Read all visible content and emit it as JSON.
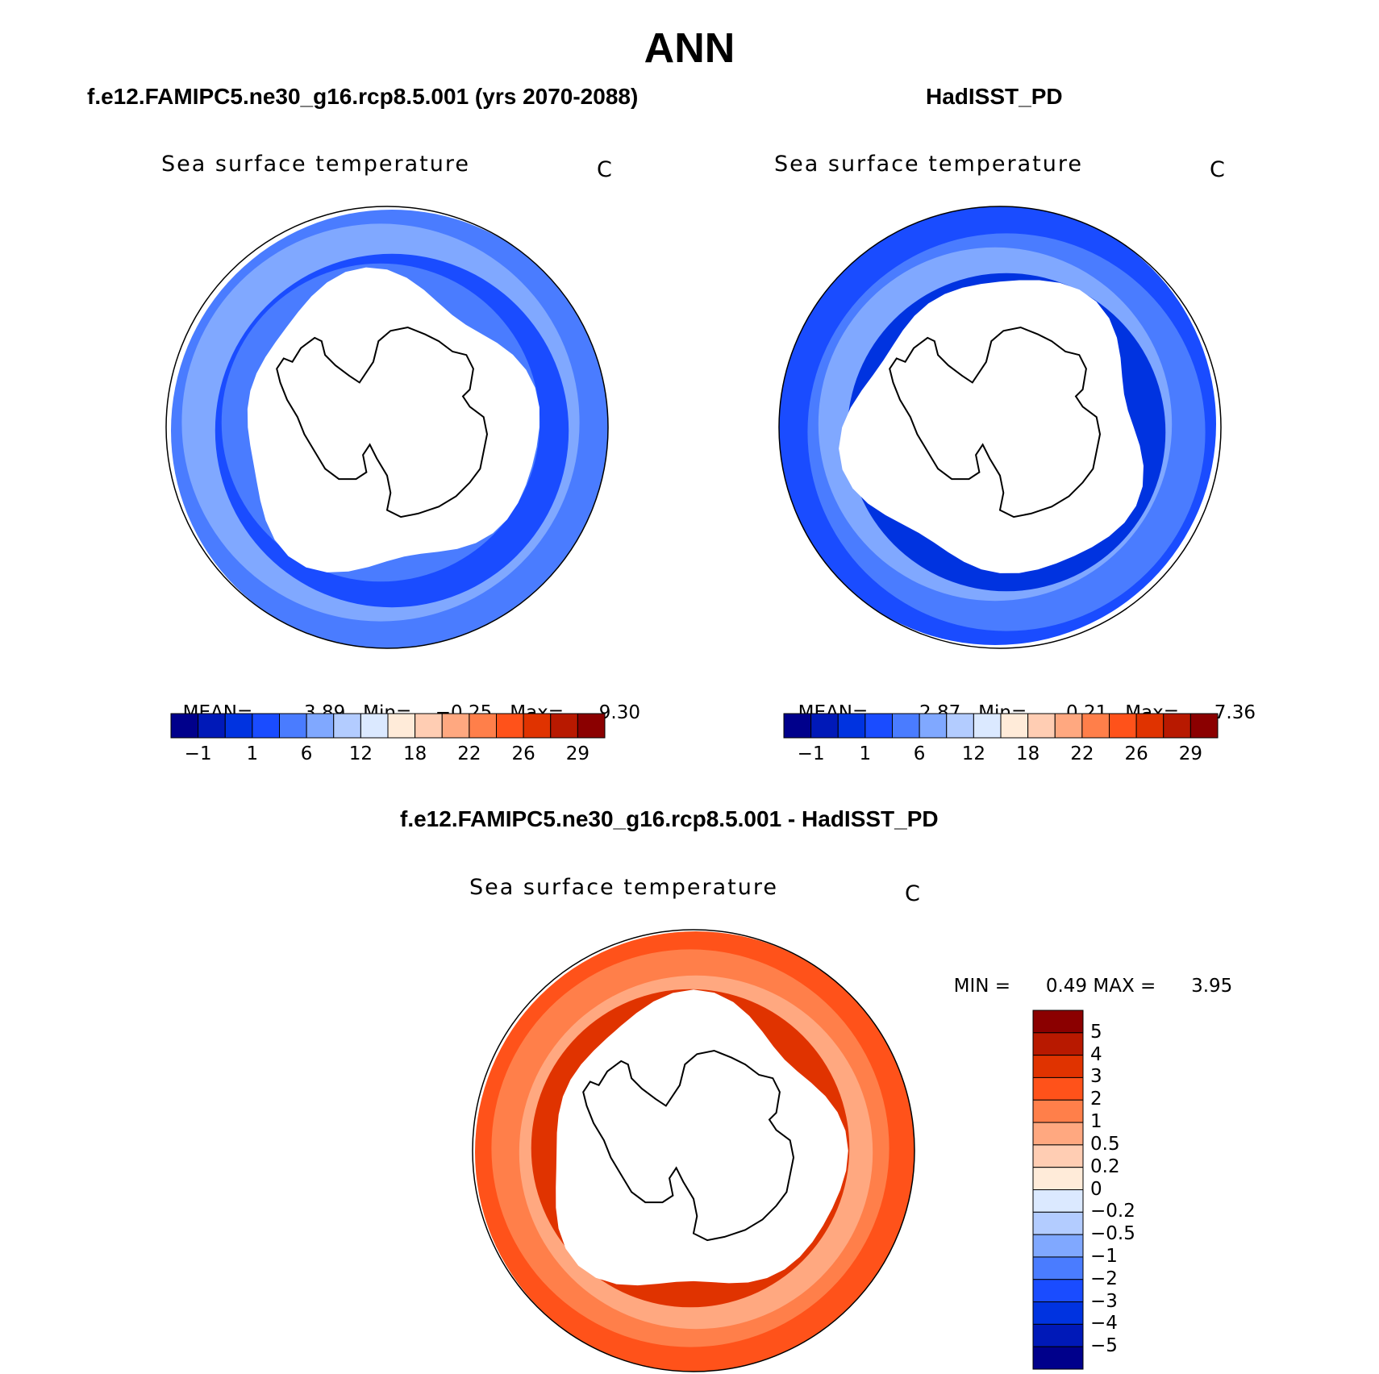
{
  "figure": {
    "title": "ANN",
    "colors": {
      "land_fill": "#ffffff",
      "outline": "#000000"
    }
  },
  "panels": [
    {
      "case_title": "f.e12.FAMIPC5.ne30_g16.rcp8.5.001 (yrs 2070-2088)",
      "variable": "Sea surface temperature",
      "units": "C",
      "stats": {
        "mean_label": "MEAN=",
        "mean": "3.89",
        "min_label": "Min=",
        "min": "−0.25",
        "max_label": "Max=",
        "max": "9.30"
      },
      "colorbar": {
        "colors": [
          "#00008b",
          "#0019b8",
          "#0033e0",
          "#1a4cff",
          "#4a7cff",
          "#80a8ff",
          "#b3ccff",
          "#dbe9ff",
          "#ffebd9",
          "#ffcdb3",
          "#ffa880",
          "#ff7f4a",
          "#ff521a",
          "#e03300",
          "#b81900",
          "#8b0000"
        ],
        "labels": [
          "−1",
          "1",
          "6",
          "12",
          "18",
          "22",
          "26",
          "29"
        ]
      },
      "map": {
        "projection": "south-polar stereographic",
        "ocean_bands": [
          "#4a7cff",
          "#80a8ff",
          "#1a4cff",
          "#4a7cff"
        ]
      }
    },
    {
      "case_title": "HadISST_PD",
      "variable": "Sea surface temperature",
      "units": "C",
      "stats": {
        "mean_label": "MEAN=",
        "mean": "2.87",
        "min_label": "Min=",
        "min": "0.21",
        "max_label": "Max=",
        "max": "7.36"
      },
      "colorbar": {
        "colors": [
          "#00008b",
          "#0019b8",
          "#0033e0",
          "#1a4cff",
          "#4a7cff",
          "#80a8ff",
          "#b3ccff",
          "#dbe9ff",
          "#ffebd9",
          "#ffcdb3",
          "#ffa880",
          "#ff7f4a",
          "#ff521a",
          "#e03300",
          "#b81900",
          "#8b0000"
        ],
        "labels": [
          "−1",
          "1",
          "6",
          "12",
          "18",
          "22",
          "26",
          "29"
        ]
      },
      "map": {
        "projection": "south-polar stereographic",
        "ocean_bands": [
          "#1a4cff",
          "#4a7cff",
          "#80a8ff",
          "#0033e0"
        ]
      }
    }
  ],
  "difference": {
    "case_title": "f.e12.FAMIPC5.ne30_g16.rcp8.5.001 - HadISST_PD",
    "variable": "Sea surface temperature",
    "units": "C",
    "stats": {
      "min_label": "MIN =",
      "min": "0.49",
      "max_label": "MAX =",
      "max": "3.95"
    },
    "colorbar": {
      "colors": [
        "#8b0000",
        "#b81900",
        "#e03300",
        "#ff521a",
        "#ff7f4a",
        "#ffa880",
        "#ffcdb3",
        "#ffebd9",
        "#dbe9ff",
        "#b3ccff",
        "#80a8ff",
        "#4a7cff",
        "#1a4cff",
        "#0033e0",
        "#0019b8",
        "#00008b"
      ],
      "labels": [
        "5",
        "4",
        "3",
        "2",
        "1",
        "0.5",
        "0.2",
        "0",
        "−0.2",
        "−0.5",
        "−1",
        "−2",
        "−3",
        "−4",
        "−5"
      ]
    },
    "map": {
      "projection": "south-polar stereographic",
      "ocean_bands": [
        "#ff521a",
        "#ff7f4a",
        "#ffa880",
        "#e03300"
      ]
    }
  }
}
